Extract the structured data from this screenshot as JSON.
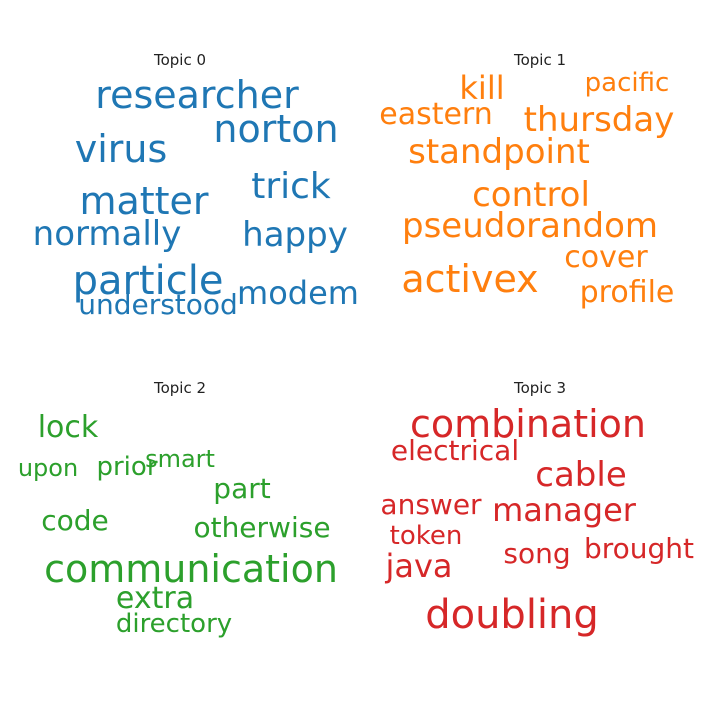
{
  "chart_data": {
    "type": "wordcloud",
    "topics": [
      {
        "title": "Topic 0",
        "color": "#1f77b4",
        "words": [
          "researcher",
          "norton",
          "virus",
          "matter",
          "trick",
          "normally",
          "happy",
          "particle",
          "modem",
          "understood"
        ]
      },
      {
        "title": "Topic 1",
        "color": "#ff7f0e",
        "words": [
          "kill",
          "pacific",
          "eastern",
          "thursday",
          "standpoint",
          "control",
          "pseudorandom",
          "cover",
          "activex",
          "profile"
        ]
      },
      {
        "title": "Topic 2",
        "color": "#2ca02c",
        "words": [
          "lock",
          "smart",
          "upon",
          "prior",
          "part",
          "code",
          "otherwise",
          "communication",
          "extra",
          "directory"
        ]
      },
      {
        "title": "Topic 3",
        "color": "#d62728",
        "words": [
          "combination",
          "electrical",
          "cable",
          "answer",
          "manager",
          "token",
          "song",
          "brought",
          "java",
          "doubling"
        ]
      }
    ]
  }
}
